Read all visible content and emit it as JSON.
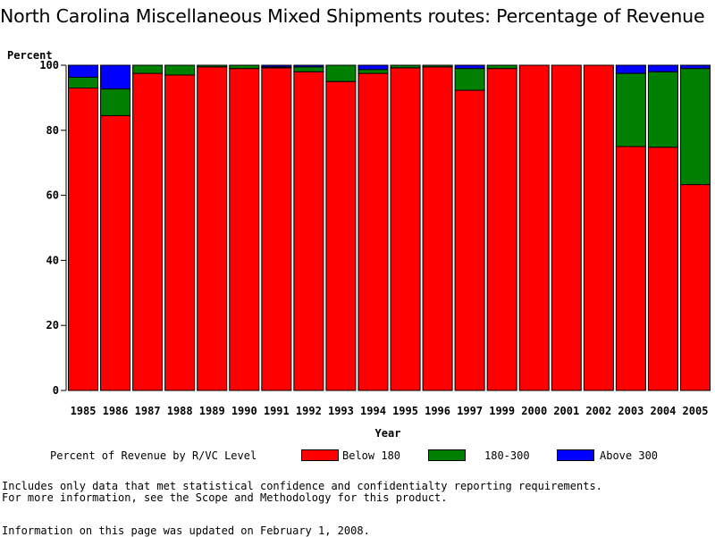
{
  "title": "North Carolina Miscellaneous Mixed Shipments routes: Percentage of Revenue",
  "colors": {
    "below_180": "#ff0000",
    "r180_300": "#008000",
    "above_300": "#0000ff"
  },
  "legend": {
    "title": "Percent of Revenue by R/VC Level",
    "items": [
      "Below 180",
      "180-300",
      "Above 300"
    ]
  },
  "notes": {
    "line1": "Includes only data that met statistical confidence and confidentialty reporting requirements.",
    "line2": "For more information, see the Scope and Methodology for this product.",
    "updated": "Information on this page was updated on February 1, 2008."
  },
  "chart_data": {
    "type": "bar",
    "stacked": true,
    "ylabel": "Percent",
    "xlabel": "Year",
    "ylim": [
      0,
      100
    ],
    "yticks": [
      0,
      20,
      40,
      60,
      80,
      100
    ],
    "categories": [
      "1985",
      "1986",
      "1987",
      "1988",
      "1989",
      "1990",
      "1991",
      "1992",
      "1993",
      "1994",
      "1995",
      "1996",
      "1997",
      "1999",
      "2000",
      "2001",
      "2002",
      "2003",
      "2004",
      "2005"
    ],
    "series": [
      {
        "name": "Below 180",
        "color": "#ff0000",
        "values": [
          93,
          84.5,
          97.5,
          97,
          99.5,
          99,
          99.2,
          98,
          95,
          97.5,
          99.2,
          99.5,
          92.3,
          99,
          100,
          100,
          100,
          75,
          74.8,
          63.3
        ]
      },
      {
        "name": "180-300",
        "color": "#008000",
        "values": [
          3.3,
          8.2,
          2.5,
          3,
          0.5,
          1,
          0.3,
          1.5,
          5,
          1.2,
          0.8,
          0.5,
          6.7,
          1,
          0,
          0,
          0,
          22.5,
          23.2,
          35.7
        ]
      },
      {
        "name": "Above 300",
        "color": "#0000ff",
        "values": [
          3.7,
          7.3,
          0,
          0,
          0,
          0,
          0.5,
          0.5,
          0,
          1.3,
          0,
          0,
          1,
          0,
          0,
          0,
          0,
          2.5,
          2,
          1
        ]
      }
    ]
  }
}
